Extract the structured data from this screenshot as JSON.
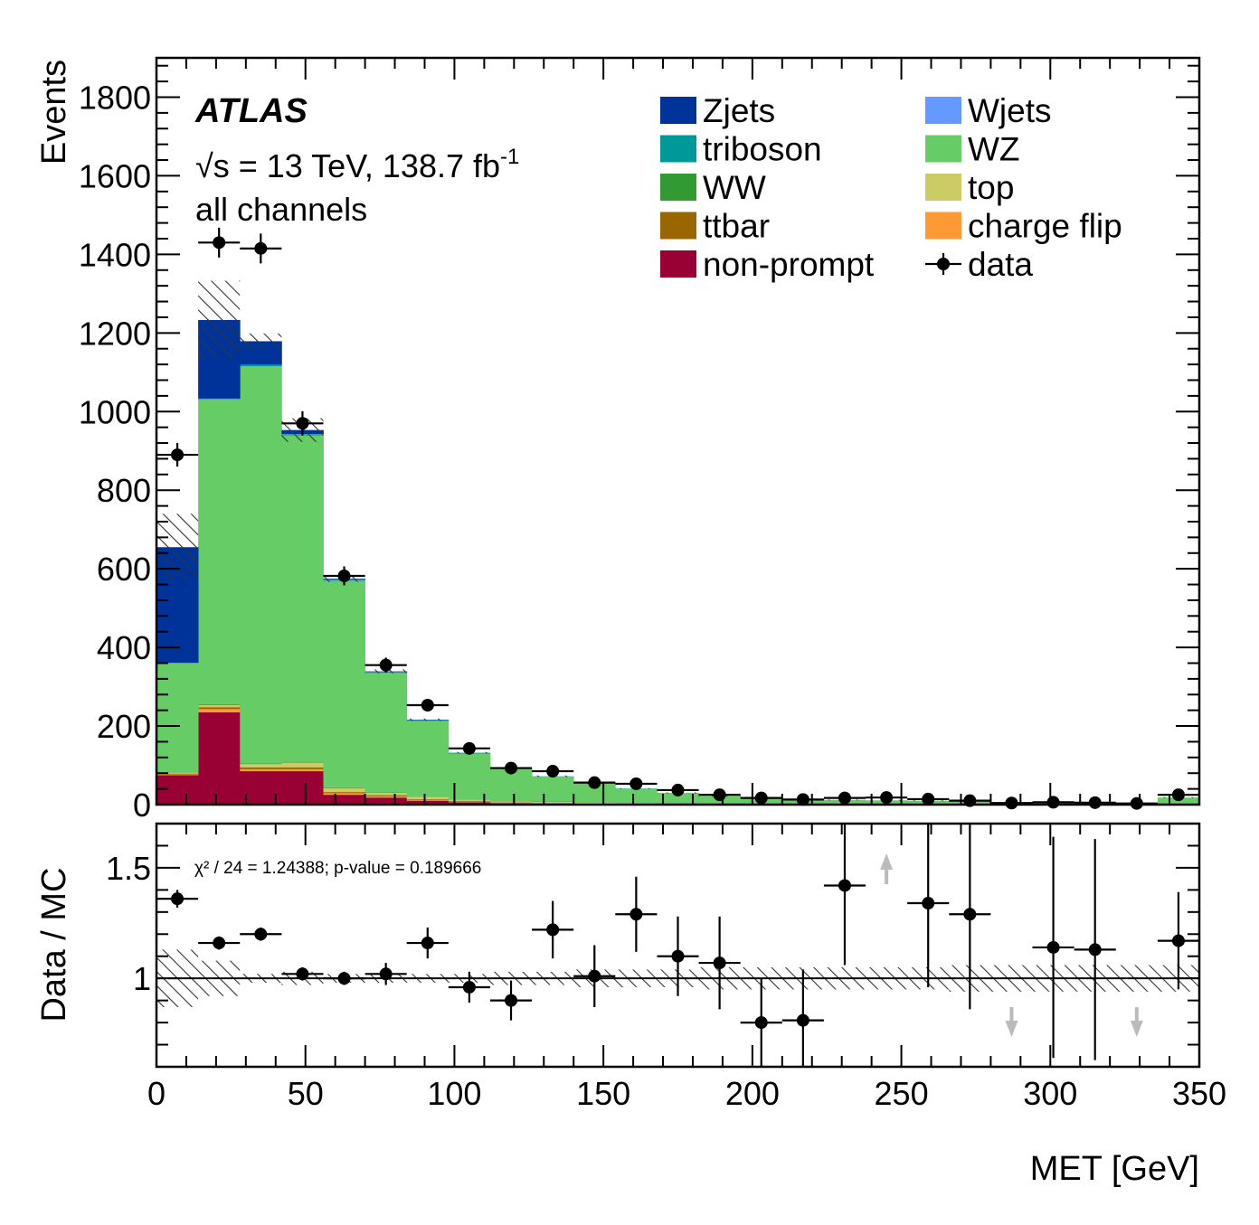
{
  "chart_data": {
    "type": "bar",
    "stacked": true,
    "bin_width": 14,
    "x_bin_centers": [
      7,
      21,
      35,
      49,
      63,
      77,
      91,
      105,
      119,
      133,
      147,
      161,
      175,
      189,
      203,
      217,
      231,
      245,
      259,
      273,
      287,
      301,
      315,
      329,
      343
    ],
    "xlabel": "MET [GeV]",
    "xlim": [
      0,
      350
    ],
    "x_ticks": [
      0,
      50,
      100,
      150,
      200,
      250,
      300,
      350
    ],
    "main_panel": {
      "ylabel": "Events",
      "ylim": [
        0,
        1900
      ],
      "y_ticks": [
        0,
        200,
        400,
        600,
        800,
        1000,
        1200,
        1400,
        1600,
        1800
      ],
      "series": [
        {
          "name": "non-prompt",
          "color": "#990033",
          "values": [
            75,
            235,
            85,
            85,
            25,
            18,
            10,
            6,
            4,
            3,
            2,
            2,
            1,
            1,
            0,
            0,
            0,
            0,
            0,
            0,
            0,
            0,
            0,
            0,
            0
          ]
        },
        {
          "name": "charge flip",
          "color": "#ff9933",
          "values": [
            2,
            8,
            5,
            5,
            4,
            3,
            2,
            1,
            1,
            1,
            0,
            0,
            0,
            0,
            0,
            0,
            0,
            0,
            0,
            0,
            0,
            0,
            0,
            0,
            0
          ]
        },
        {
          "name": "ttbar",
          "color": "#996600",
          "values": [
            2,
            5,
            5,
            5,
            3,
            3,
            2,
            2,
            1,
            1,
            1,
            0,
            0,
            0,
            0,
            0,
            0,
            0,
            0,
            0,
            0,
            0,
            0,
            0,
            0
          ]
        },
        {
          "name": "top",
          "color": "#cccc66",
          "values": [
            2,
            5,
            8,
            12,
            10,
            6,
            5,
            3,
            2,
            2,
            1,
            1,
            1,
            0,
            0,
            0,
            0,
            0,
            0,
            0,
            0,
            0,
            0,
            0,
            0
          ]
        },
        {
          "name": "WW",
          "color": "#339933",
          "values": [
            1,
            2,
            2,
            2,
            2,
            1,
            1,
            1,
            1,
            1,
            0,
            0,
            0,
            0,
            0,
            0,
            0,
            0,
            0,
            0,
            0,
            0,
            0,
            0,
            0
          ]
        },
        {
          "name": "WZ",
          "color": "#66cc66",
          "values": [
            278,
            775,
            1010,
            830,
            525,
            304,
            193,
            117,
            82,
            63,
            50,
            37,
            28,
            21,
            17,
            14,
            12,
            11,
            10,
            9,
            5,
            4,
            3,
            3,
            18
          ]
        },
        {
          "name": "triboson",
          "color": "#009999",
          "values": [
            1,
            2,
            3,
            3,
            3,
            3,
            2,
            2,
            1,
            1,
            1,
            1,
            0,
            0,
            0,
            0,
            0,
            0,
            0,
            0,
            0,
            0,
            0,
            0,
            0
          ]
        },
        {
          "name": "Wjets",
          "color": "#6699ff",
          "values": [
            0,
            1,
            1,
            1,
            1,
            0,
            0,
            0,
            0,
            0,
            0,
            0,
            0,
            0,
            0,
            0,
            0,
            0,
            0,
            0,
            0,
            0,
            0,
            0,
            0
          ]
        },
        {
          "name": "Zjets",
          "color": "#003399",
          "values": [
            294,
            200,
            60,
            10,
            2,
            1,
            1,
            0,
            0,
            0,
            0,
            0,
            0,
            0,
            0,
            0,
            0,
            0,
            0,
            0,
            0,
            0,
            0,
            0,
            0
          ]
        }
      ],
      "mc_total": [
        655,
        1233,
        1179,
        953,
        575,
        339,
        216,
        132,
        92,
        72,
        55,
        41,
        30,
        22,
        17,
        14,
        12,
        11,
        10,
        9,
        5,
        4,
        3,
        3,
        18
      ],
      "mc_uncertainty": [
        85,
        100,
        20,
        30,
        8,
        5,
        3,
        2,
        2,
        2,
        2,
        1,
        1,
        1,
        1,
        1,
        1,
        1,
        1,
        1,
        1,
        1,
        1,
        1,
        1
      ],
      "data": {
        "name": "data",
        "values": [
          890,
          1430,
          1415,
          970,
          582,
          355,
          253,
          143,
          93,
          85,
          56,
          53,
          37,
          25,
          17,
          13,
          17,
          18,
          14,
          10,
          4,
          6,
          5,
          3,
          25
        ],
        "errors": [
          30,
          38,
          38,
          31,
          24,
          19,
          16,
          12,
          10,
          9,
          7.5,
          7.3,
          6.1,
          5,
          4.1,
          3.6,
          4.1,
          4.2,
          3.7,
          3.2,
          2,
          2.4,
          2.2,
          1.7,
          5
        ]
      }
    },
    "ratio_panel": {
      "ylabel": "Data / MC",
      "ylim": [
        0.6,
        1.7
      ],
      "y_ticks": [
        1,
        1.5
      ],
      "y_tick_labels": [
        "1",
        "1.5"
      ],
      "ratio_values": [
        1.36,
        1.16,
        1.2,
        1.02,
        1,
        1.02,
        1.16,
        0.96,
        0.9,
        1.22,
        1.01,
        1.29,
        1.1,
        1.07,
        0.8,
        0.81,
        1.42,
        null,
        1.34,
        1.29,
        null,
        1.14,
        1.13,
        null,
        1.17
      ],
      "ratio_errors": [
        0.04,
        0.03,
        0.03,
        0.03,
        0.03,
        0.05,
        0.07,
        0.07,
        0.09,
        0.13,
        0.14,
        0.17,
        0.18,
        0.21,
        0.2,
        0.23,
        0.36,
        null,
        0.38,
        0.43,
        null,
        0.5,
        0.5,
        null,
        0.22
      ],
      "syst_band_rel": [
        0.13,
        0.08,
        0.02,
        0.03,
        0.02,
        0.02,
        0.02,
        0.02,
        0.03,
        0.03,
        0.04,
        0.04,
        0.04,
        0.05,
        0.05,
        0.05,
        0.05,
        0.05,
        0.05,
        0.06,
        0.06,
        0.06,
        0.06,
        0.06,
        0.06
      ],
      "off_scale_arrows": [
        {
          "x": 245,
          "direction": "up"
        },
        {
          "x": 287,
          "direction": "down"
        },
        {
          "x": 329,
          "direction": "down"
        }
      ],
      "fit_text": "χ² / 24 = 1.24388; p-value = 0.189666"
    },
    "annotations": {
      "experiment": "ATLAS",
      "energy_text": "√s = 13 TeV, 138.7 fb",
      "lumi_exponent": "-1",
      "channel_text": "all channels"
    },
    "legend": [
      {
        "label": "Zjets",
        "color": "#003399",
        "kind": "box"
      },
      {
        "label": "Wjets",
        "color": "#6699ff",
        "kind": "box"
      },
      {
        "label": "triboson",
        "color": "#009999",
        "kind": "box"
      },
      {
        "label": "WZ",
        "color": "#66cc66",
        "kind": "box"
      },
      {
        "label": "WW",
        "color": "#339933",
        "kind": "box"
      },
      {
        "label": "top",
        "color": "#cccc66",
        "kind": "box"
      },
      {
        "label": "ttbar",
        "color": "#996600",
        "kind": "box"
      },
      {
        "label": "charge flip",
        "color": "#ff9933",
        "kind": "box"
      },
      {
        "label": "non-prompt",
        "color": "#990033",
        "kind": "box"
      },
      {
        "label": "data",
        "color": "#000000",
        "kind": "marker"
      }
    ],
    "legend_placement": "top-right"
  }
}
